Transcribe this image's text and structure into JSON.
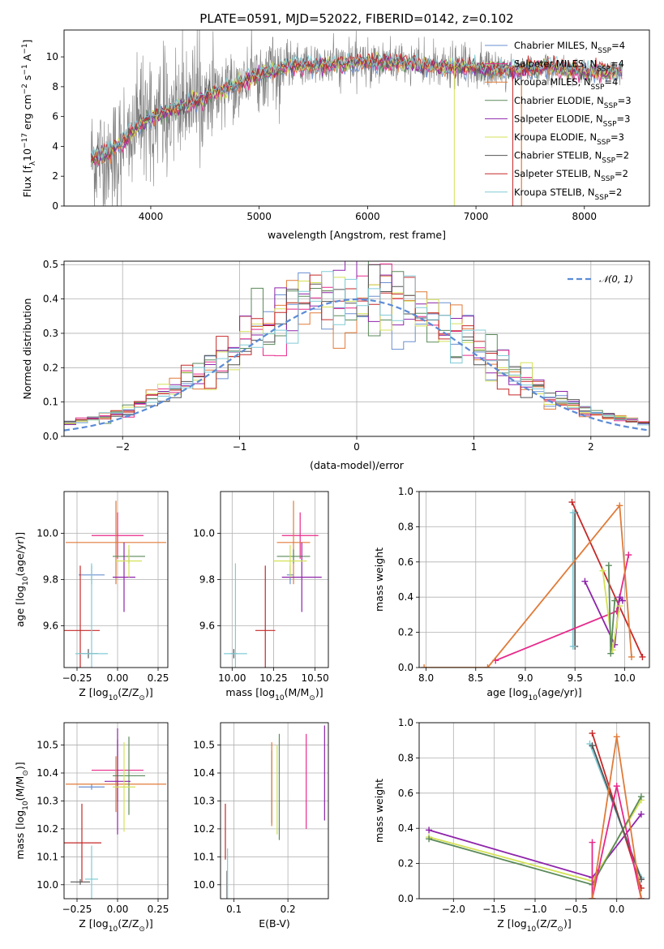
{
  "figure": {
    "title": "PLATE=0591, MJD=52022, FIBERID=0142, z=0.102"
  },
  "colors": {
    "data": "#808080",
    "Chabrier MILES": "#6a8fd0",
    "Salpeter MILES": "#e7298a",
    "Kroupa MILES": "#e07b39",
    "Chabrier ELODIE": "#5a8a5a",
    "Salpeter ELODIE": "#8e24aa",
    "Kroupa ELODIE": "#d4e157",
    "Chabrier STELIB": "#555555",
    "Salpeter STELIB": "#c62828",
    "Kroupa STELIB": "#80cbd6",
    "gauss": "#5b8bd6"
  },
  "chart_data": [
    {
      "id": "spectrum",
      "type": "line",
      "title": "PLATE=0591, MJD=52022, FIBERID=0142, z=0.102",
      "xlabel": "wavelength [Angstrom, rest frame]",
      "ylabel_main": "Flux [f",
      "ylabel_sub": "λ",
      "ylabel_rest": "10",
      "ylabel_exp": "−17",
      "ylabel_unit": " erg cm",
      "ylabel_tail": "−2",
      "ylabel_s": " s",
      "ylabel_s_exp": "−1",
      "ylabel_a": " A",
      "ylabel_a_exp": "−1",
      "ylabel_close": "]",
      "xlim": [
        3200,
        8600
      ],
      "ylim": [
        0,
        11.8
      ],
      "xticks": [
        4000,
        5000,
        6000,
        7000,
        8000
      ],
      "yticks": [
        0,
        2,
        4,
        6,
        8,
        10
      ],
      "grid": false,
      "legend_position": "right",
      "legend": [
        {
          "name": "Chabrier MILES",
          "label": "Chabrier MILES, N",
          "sub": "SSP",
          "suffix": "=4"
        },
        {
          "name": "Salpeter MILES",
          "label": "Salpeter MILES, N",
          "sub": "SSP",
          "suffix": "=4"
        },
        {
          "name": "Kroupa MILES",
          "label": "Kroupa MILES, N",
          "sub": "SSP",
          "suffix": "=4"
        },
        {
          "name": "Chabrier ELODIE",
          "label": "Chabrier ELODIE, N",
          "sub": "SSP",
          "suffix": "=3"
        },
        {
          "name": "Salpeter ELODIE",
          "label": "Salpeter ELODIE, N",
          "sub": "SSP",
          "suffix": "=3"
        },
        {
          "name": "Kroupa ELODIE",
          "label": "Kroupa ELODIE, N",
          "sub": "SSP",
          "suffix": "=3"
        },
        {
          "name": "Chabrier STELIB",
          "label": "Chabrier STELIB, N",
          "sub": "SSP",
          "suffix": "=2"
        },
        {
          "name": "Salpeter STELIB",
          "label": "Salpeter STELIB, N",
          "sub": "SSP",
          "suffix": "=2"
        },
        {
          "name": "Kroupa STELIB",
          "label": "Kroupa STELIB, N",
          "sub": "SSP",
          "suffix": "=2"
        }
      ],
      "continuum": [
        [
          3500,
          3.2
        ],
        [
          3700,
          4.0
        ],
        [
          3900,
          5.5
        ],
        [
          4100,
          6.2
        ],
        [
          4300,
          6.7
        ],
        [
          4500,
          7.3
        ],
        [
          4700,
          7.9
        ],
        [
          4900,
          8.5
        ],
        [
          5100,
          9.0
        ],
        [
          5300,
          9.4
        ],
        [
          5500,
          9.4
        ],
        [
          5700,
          9.5
        ],
        [
          5900,
          9.6
        ],
        [
          6100,
          9.7
        ],
        [
          6300,
          9.6
        ],
        [
          6500,
          9.4
        ],
        [
          6700,
          9.3
        ],
        [
          6900,
          9.3
        ],
        [
          7100,
          9.2
        ],
        [
          7300,
          9.1
        ],
        [
          7500,
          9.2
        ],
        [
          7700,
          9.3
        ],
        [
          7900,
          9.1
        ],
        [
          8100,
          9.0
        ],
        [
          8350,
          9.0
        ]
      ],
      "data_range": [
        3450,
        8350
      ]
    },
    {
      "id": "residuals",
      "type": "histogram",
      "xlabel": "(data-model)/error",
      "ylabel": "Normed distribution",
      "xlim": [
        -2.5,
        2.5
      ],
      "ylim": [
        0,
        0.51
      ],
      "xticks": [
        -2,
        -1,
        0,
        1,
        2
      ],
      "xtick_labels": [
        "−2",
        "−1",
        "0",
        "1",
        "2"
      ],
      "yticks": [
        0.0,
        0.1,
        0.2,
        0.3,
        0.4,
        0.5
      ],
      "ytick_labels": [
        "0.0",
        "0.1",
        "0.2",
        "0.3",
        "0.4",
        "0.5"
      ],
      "grid": true,
      "legend_position": "top-right",
      "legend_label": "𝒩(0, 1)",
      "bin_width": 0.1,
      "gaussian": {
        "mean": 0,
        "sigma": 1
      }
    },
    {
      "id": "age_vs_Z",
      "type": "errorbar",
      "xlabel": "Z [log",
      "xlabel_sub": "10",
      "xlabel_rest": "(Z/Z",
      "xlabel_sub2": "⊙",
      "xlabel_close": ")]",
      "ylabel": "age  [log",
      "ylabel_sub": "10",
      "ylabel_rest": "(age/yr)]",
      "xlim": [
        -0.33,
        0.31
      ],
      "ylim": [
        9.42,
        10.18
      ],
      "xticks": [
        -0.25,
        0.0,
        0.25
      ],
      "xtick_labels": [
        "−0.25",
        "0.00",
        "0.25"
      ],
      "yticks": [
        9.6,
        9.8,
        10.0
      ],
      "ytick_labels": [
        "9.6",
        "9.8",
        "10.0"
      ],
      "grid": true,
      "points": [
        {
          "series": "Chabrier MILES",
          "x": -0.16,
          "xe": 0.08,
          "y": 9.82,
          "ye": 0.04
        },
        {
          "series": "Salpeter MILES",
          "x": 0.0,
          "xe": 0.16,
          "y": 9.99,
          "ye": 0.1
        },
        {
          "series": "Kroupa MILES",
          "x": -0.01,
          "xe": 0.31,
          "y": 9.96,
          "ye": 0.18
        },
        {
          "series": "Chabrier ELODIE",
          "x": 0.07,
          "xe": 0.1,
          "y": 9.9,
          "ye": 0.03
        },
        {
          "series": "Salpeter ELODIE",
          "x": 0.04,
          "xe": 0.07,
          "y": 9.81,
          "ye": 0.15
        },
        {
          "series": "Kroupa ELODIE",
          "x": 0.07,
          "xe": 0.08,
          "y": 9.88,
          "ye": 0.07
        },
        {
          "series": "Chabrier STELIB",
          "x": -0.18,
          "xe": 0.06,
          "y": 9.48,
          "ye": 0.02
        },
        {
          "series": "Salpeter STELIB",
          "x": -0.23,
          "xe": 0.12,
          "y": 9.58,
          "ye": 0.28
        },
        {
          "series": "Kroupa STELIB",
          "x": -0.16,
          "xe": 0.1,
          "y": 9.48,
          "ye": 0.39
        }
      ]
    },
    {
      "id": "age_vs_mass",
      "type": "errorbar",
      "xlabel": "mass [log",
      "xlabel_sub": "10",
      "xlabel_rest": "(M/M",
      "xlabel_sub2": "⊙",
      "xlabel_close": ")]",
      "xlim": [
        9.93,
        10.58
      ],
      "ylim": [
        9.42,
        10.18
      ],
      "xticks": [
        10.0,
        10.25,
        10.5
      ],
      "xtick_labels": [
        "10.00",
        "10.25",
        "10.50"
      ],
      "yticks": [
        9.6,
        9.8,
        10.0
      ],
      "ytick_labels": [
        "9.6",
        "9.8",
        "10.0"
      ],
      "grid": true,
      "points": [
        {
          "series": "Chabrier MILES",
          "x": 10.35,
          "xe": 0.02,
          "y": 9.82,
          "ye": 0.04
        },
        {
          "series": "Salpeter MILES",
          "x": 10.41,
          "xe": 0.11,
          "y": 9.99,
          "ye": 0.1
        },
        {
          "series": "Kroupa MILES",
          "x": 10.37,
          "xe": 0.1,
          "y": 9.96,
          "ye": 0.18
        },
        {
          "series": "Chabrier ELODIE",
          "x": 10.37,
          "xe": 0.1,
          "y": 9.9,
          "ye": 0.03
        },
        {
          "series": "Salpeter ELODIE",
          "x": 10.42,
          "xe": 0.12,
          "y": 9.81,
          "ye": 0.15
        },
        {
          "series": "Kroupa ELODIE",
          "x": 10.35,
          "xe": 0.1,
          "y": 9.88,
          "ye": 0.07
        },
        {
          "series": "Chabrier STELIB",
          "x": 10.01,
          "xe": 0.02,
          "y": 9.48,
          "ye": 0.02
        },
        {
          "series": "Salpeter STELIB",
          "x": 10.2,
          "xe": 0.06,
          "y": 9.58,
          "ye": 0.28
        },
        {
          "series": "Kroupa STELIB",
          "x": 10.02,
          "xe": 0.07,
          "y": 9.48,
          "ye": 0.39
        }
      ]
    },
    {
      "id": "weight_vs_age",
      "type": "line",
      "xlabel": "age  [log",
      "xlabel_sub": "10",
      "xlabel_rest": "(age/yr)]",
      "ylabel": "mass weight",
      "xlim": [
        7.93,
        10.25
      ],
      "ylim": [
        0,
        1.0
      ],
      "xticks": [
        8.0,
        8.5,
        9.0,
        9.5,
        10.0
      ],
      "xtick_labels": [
        "8.0",
        "8.5",
        "9.0",
        "9.5",
        "10.0"
      ],
      "yticks": [
        0.0,
        0.2,
        0.4,
        0.6,
        0.8,
        1.0
      ],
      "ytick_labels": [
        "0.0",
        "0.2",
        "0.4",
        "0.6",
        "0.8",
        "1.0"
      ],
      "grid": true,
      "series": [
        {
          "name": "Salpeter STELIB",
          "x": [
            10.18,
            9.47
          ],
          "y": [
            0.06,
            0.94
          ]
        },
        {
          "name": "Chabrier STELIB",
          "x": [
            9.5,
            9.5
          ],
          "y": [
            0.12,
            0.88
          ]
        },
        {
          "name": "Kroupa STELIB",
          "x": [
            9.48,
            9.48
          ],
          "y": [
            0.12,
            0.88
          ]
        },
        {
          "name": "Salpeter MILES",
          "x": [
            8.7,
            9.92,
            10.04
          ],
          "y": [
            0.04,
            0.32,
            0.64
          ]
        },
        {
          "name": "Kroupa MILES",
          "x": [
            7.98,
            8.62,
            9.95,
            10.07
          ],
          "y": [
            0.0,
            0.0,
            0.92,
            0.06
          ]
        },
        {
          "name": "Salpeter ELODIE",
          "x": [
            9.6,
            9.9,
            9.95,
            9.98
          ],
          "y": [
            0.49,
            0.13,
            0.4,
            0.38
          ]
        },
        {
          "name": "Kroupa ELODIE",
          "x": [
            9.78,
            9.88,
            9.95
          ],
          "y": [
            0.55,
            0.1,
            0.35
          ]
        },
        {
          "name": "Chabrier ELODIE",
          "x": [
            9.84,
            9.86,
            9.9
          ],
          "y": [
            0.58,
            0.08,
            0.38
          ]
        }
      ]
    },
    {
      "id": "mass_vs_Z",
      "type": "errorbar",
      "xlabel": "Z [log",
      "xlabel_sub": "10",
      "xlabel_rest": "(Z/Z",
      "xlabel_sub2": "⊙",
      "xlabel_close": ")]",
      "ylabel": "mass [log",
      "ylabel_sub": "10",
      "ylabel_rest": "(M/M",
      "ylabel_sub2": "⊙",
      "ylabel_close": ")]",
      "xlim": [
        -0.33,
        0.31
      ],
      "ylim": [
        9.95,
        10.58
      ],
      "xticks": [
        -0.25,
        0.0,
        0.25
      ],
      "xtick_labels": [
        "−0.25",
        "0.00",
        "0.25"
      ],
      "yticks": [
        10.0,
        10.1,
        10.2,
        10.3,
        10.4,
        10.5
      ],
      "ytick_labels": [
        "10.0",
        "10.1",
        "10.2",
        "10.3",
        "10.4",
        "10.5"
      ],
      "grid": true,
      "points": [
        {
          "series": "Chabrier MILES",
          "x": -0.16,
          "xe": 0.08,
          "y": 10.35,
          "ye": 0.01
        },
        {
          "series": "Salpeter MILES",
          "x": 0.0,
          "xe": 0.16,
          "y": 10.41,
          "ye": 0.11
        },
        {
          "series": "Kroupa MILES",
          "x": -0.01,
          "xe": 0.31,
          "y": 10.36,
          "ye": 0.1
        },
        {
          "series": "Chabrier ELODIE",
          "x": 0.07,
          "xe": 0.1,
          "y": 10.39,
          "ye": 0.14
        },
        {
          "series": "Salpeter ELODIE",
          "x": 0.0,
          "xe": 0.08,
          "y": 10.37,
          "ye": 0.19
        },
        {
          "series": "Kroupa ELODIE",
          "x": 0.04,
          "xe": 0.07,
          "y": 10.35,
          "ye": 0.16
        },
        {
          "series": "Chabrier STELIB",
          "x": -0.23,
          "xe": 0.06,
          "y": 10.01,
          "ye": 0.01
        },
        {
          "series": "Salpeter STELIB",
          "x": -0.22,
          "xe": 0.12,
          "y": 10.15,
          "ye": 0.14
        },
        {
          "series": "Kroupa STELIB",
          "x": -0.16,
          "xe": 0.04,
          "y": 10.02,
          "ye": 0.12
        }
      ]
    },
    {
      "id": "mass_vs_ebv",
      "type": "errorbar",
      "xlabel": "E(B-V)",
      "xlim": [
        0.075,
        0.275
      ],
      "ylim": [
        9.95,
        10.58
      ],
      "xticks": [
        0.1,
        0.2
      ],
      "xtick_labels": [
        "0.1",
        "0.2"
      ],
      "yticks": [
        10.0,
        10.1,
        10.2,
        10.3,
        10.4,
        10.5
      ],
      "ytick_labels": [
        "10.0",
        "10.1",
        "10.2",
        "10.3",
        "10.4",
        "10.5"
      ],
      "grid": true,
      "points": [
        {
          "series": "Chabrier MILES",
          "x": 0.17,
          "y": 10.35,
          "ye": 0.13
        },
        {
          "series": "Salpeter MILES",
          "x": 0.234,
          "y": 10.37,
          "ye": 0.17
        },
        {
          "series": "Kroupa MILES",
          "x": 0.17,
          "y": 10.36,
          "ye": 0.15
        },
        {
          "series": "Chabrier ELODIE",
          "x": 0.184,
          "y": 10.35,
          "ye": 0.19
        },
        {
          "series": "Salpeter ELODIE",
          "x": 0.268,
          "y": 10.4,
          "ye": 0.17
        },
        {
          "series": "Kroupa ELODIE",
          "x": 0.18,
          "y": 10.34,
          "ye": 0.16
        },
        {
          "series": "Chabrier STELIB",
          "x": 0.087,
          "y": 10.0,
          "ye": 0.05
        },
        {
          "series": "Salpeter STELIB",
          "x": 0.084,
          "y": 10.19,
          "ye": 0.1
        },
        {
          "series": "Kroupa STELIB",
          "x": 0.088,
          "y": 10.01,
          "ye": 0.12
        }
      ]
    },
    {
      "id": "weight_vs_Z",
      "type": "line",
      "xlabel": "Z [log",
      "xlabel_sub": "10",
      "xlabel_rest": "(Z/Z",
      "xlabel_sub2": "⊙",
      "xlabel_close": ")]",
      "ylabel": "mass weight",
      "xlim": [
        -2.42,
        0.4
      ],
      "ylim": [
        0,
        1.0
      ],
      "xticks": [
        -2.0,
        -1.5,
        -1.0,
        -0.5,
        0.0
      ],
      "xtick_labels": [
        "−2.0",
        "−1.5",
        "−1.0",
        "−0.5",
        "0.0"
      ],
      "yticks": [
        0.0,
        0.2,
        0.4,
        0.6,
        0.8,
        1.0
      ],
      "ytick_labels": [
        "0.0",
        "0.2",
        "0.4",
        "0.6",
        "0.8",
        "1.0"
      ],
      "grid": true,
      "series": [
        {
          "name": "Salpeter ELODIE",
          "x": [
            -2.3,
            -0.3,
            0.3
          ],
          "y": [
            0.39,
            0.12,
            0.48
          ]
        },
        {
          "name": "Kroupa ELODIE",
          "x": [
            -2.3,
            -0.3,
            0.3
          ],
          "y": [
            0.35,
            0.1,
            0.56
          ]
        },
        {
          "name": "Chabrier ELODIE",
          "x": [
            -2.3,
            -0.3,
            0.3
          ],
          "y": [
            0.34,
            0.08,
            0.58
          ]
        },
        {
          "name": "Salpeter STELIB",
          "x": [
            -0.3,
            0.3
          ],
          "y": [
            0.94,
            0.06
          ]
        },
        {
          "name": "Kroupa STELIB",
          "x": [
            -0.33,
            0.3
          ],
          "y": [
            0.88,
            0.12
          ]
        },
        {
          "name": "Chabrier STELIB",
          "x": [
            -0.3,
            0.3
          ],
          "y": [
            0.87,
            0.11
          ]
        },
        {
          "name": "Salpeter MILES",
          "x": [
            -0.3,
            -0.3,
            0.0,
            0.3
          ],
          "y": [
            0.32,
            0.0,
            0.64,
            0.0
          ]
        },
        {
          "name": "Kroupa MILES",
          "x": [
            -0.3,
            -0.3,
            0.0,
            0.3
          ],
          "y": [
            0.0,
            0.0,
            0.92,
            0.0
          ]
        }
      ]
    }
  ]
}
